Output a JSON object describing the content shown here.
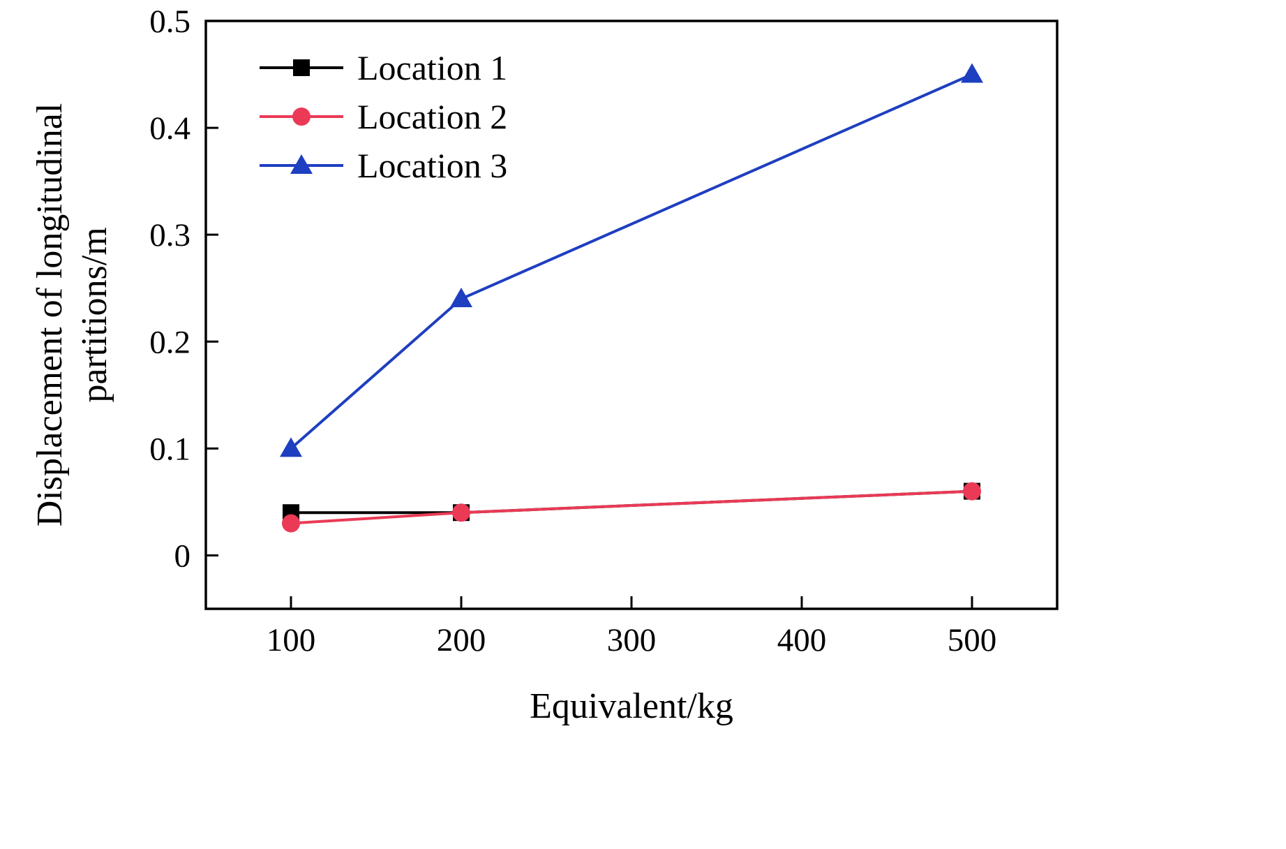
{
  "figure": {
    "background": "#ffffff"
  },
  "chart_data": {
    "type": "line",
    "title": "",
    "xlabel": "Equivalent/kg",
    "ylabel_lines": [
      "Displacement of longitudinal",
      "partitions/m"
    ],
    "x": [
      100,
      200,
      500
    ],
    "series": [
      {
        "name": "Location 1",
        "values": [
          0.04,
          0.04,
          0.06
        ],
        "color": "#000000",
        "marker": "square"
      },
      {
        "name": "Location 2",
        "values": [
          0.03,
          0.04,
          0.06
        ],
        "color": "#ea3a56",
        "marker": "circle"
      },
      {
        "name": "Location 3",
        "values": [
          0.1,
          0.24,
          0.45
        ],
        "color": "#1e3fc0",
        "marker": "triangle"
      }
    ],
    "xlim": [
      50,
      550
    ],
    "ylim": [
      -0.05,
      0.5
    ],
    "xticks": [
      100,
      200,
      300,
      400,
      500
    ],
    "yticks": [
      0,
      0.1,
      0.2,
      0.3,
      0.4,
      0.5
    ],
    "ytick_labels": [
      "0",
      "0.1",
      "0.2",
      "0.3",
      "0.4",
      "0.5"
    ],
    "grid": false,
    "legend_position": "upper-left",
    "axis_color": "#000000"
  }
}
